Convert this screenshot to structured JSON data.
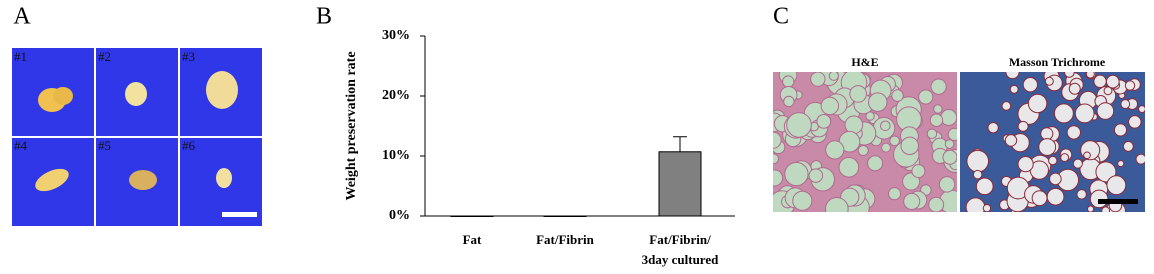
{
  "panels": {
    "a": {
      "label": "A",
      "tiles": [
        "#1",
        "#2",
        "#3",
        "#4",
        "#5",
        "#6"
      ]
    },
    "b": {
      "label": "B"
    },
    "c": {
      "label": "C",
      "images": [
        "H&E",
        "Masson Trichrome"
      ]
    }
  },
  "chart_data": {
    "type": "bar",
    "ylabel": "Weight preservation rate",
    "categories": [
      "Fat",
      "Fat/Fibrin",
      "Fat/Fibrin/\n3day cultured"
    ],
    "values": [
      0,
      0,
      10.7
    ],
    "errors": [
      0,
      0,
      2.5
    ],
    "color": "#808080",
    "ylim": [
      0,
      30
    ],
    "yticks": [
      {
        "value": 0,
        "label": "0%"
      },
      {
        "value": 10,
        "label": "10%"
      },
      {
        "value": 20,
        "label": "20%"
      },
      {
        "value": 30,
        "label": "30%"
      }
    ]
  }
}
